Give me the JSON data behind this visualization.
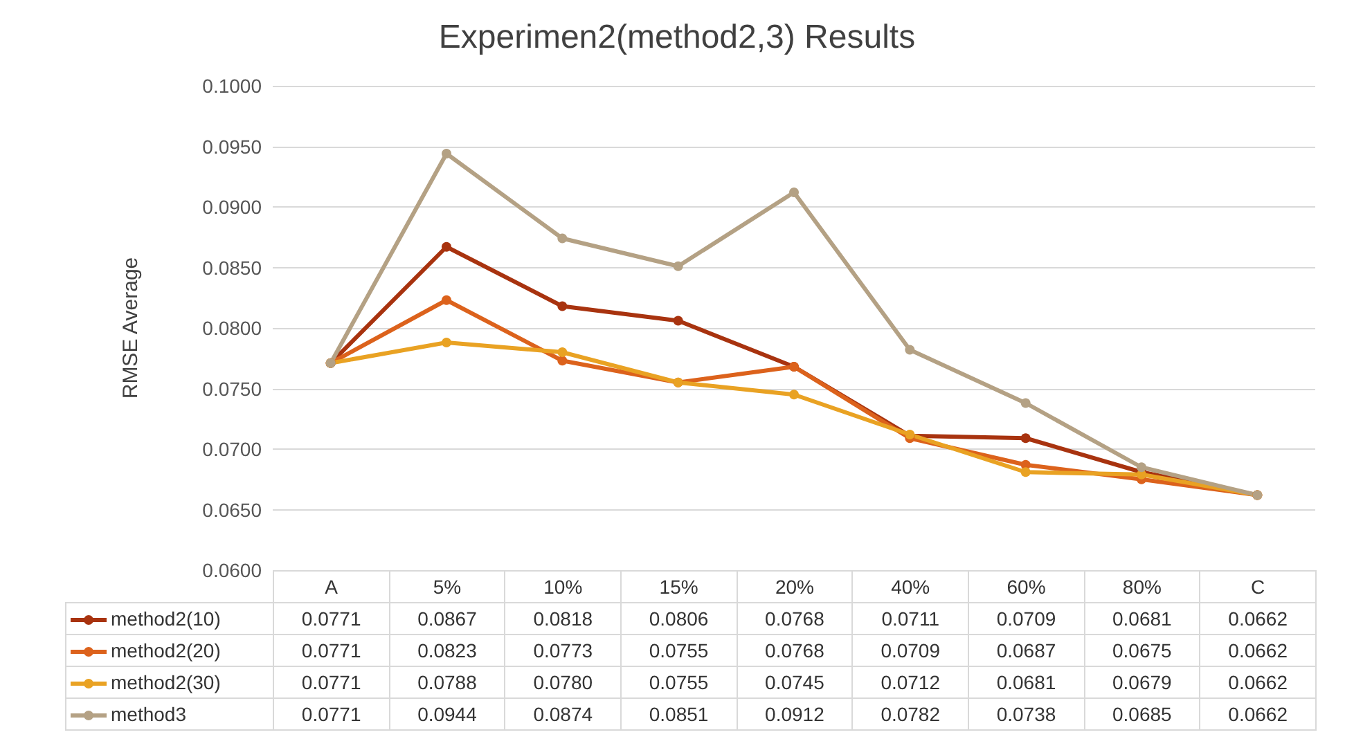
{
  "chart_data": {
    "type": "line",
    "title": "Experimen2(method2,3) Results",
    "ylabel": "RMSE Average",
    "categories": [
      "A",
      "5%",
      "10%",
      "15%",
      "20%",
      "40%",
      "60%",
      "80%",
      "C"
    ],
    "series": [
      {
        "name": "method2(10)",
        "color": "#a8330f",
        "values": [
          0.0771,
          0.0867,
          0.0818,
          0.0806,
          0.0768,
          0.0711,
          0.0709,
          0.0681,
          0.0662
        ],
        "value_labels": [
          "0.0771",
          "0.0867",
          "0.0818",
          "0.0806",
          "0.0768",
          "0.0711",
          "0.0709",
          "0.0681",
          "0.0662"
        ]
      },
      {
        "name": "method2(20)",
        "color": "#dc621c",
        "values": [
          0.0771,
          0.0823,
          0.0773,
          0.0755,
          0.0768,
          0.0709,
          0.0687,
          0.0675,
          0.0662
        ],
        "value_labels": [
          "0.0771",
          "0.0823",
          "0.0773",
          "0.0755",
          "0.0768",
          "0.0709",
          "0.0687",
          "0.0675",
          "0.0662"
        ]
      },
      {
        "name": "method2(30)",
        "color": "#e9a223",
        "values": [
          0.0771,
          0.0788,
          0.078,
          0.0755,
          0.0745,
          0.0712,
          0.0681,
          0.0679,
          0.0662
        ],
        "value_labels": [
          "0.0771",
          "0.0788",
          "0.0780",
          "0.0755",
          "0.0745",
          "0.0712",
          "0.0681",
          "0.0679",
          "0.0662"
        ]
      },
      {
        "name": "method3",
        "color": "#b4a184",
        "values": [
          0.0771,
          0.0944,
          0.0874,
          0.0851,
          0.0912,
          0.0782,
          0.0738,
          0.0685,
          0.0662
        ],
        "value_labels": [
          "0.0771",
          "0.0944",
          "0.0874",
          "0.0851",
          "0.0912",
          "0.0782",
          "0.0738",
          "0.0685",
          "0.0662"
        ]
      }
    ],
    "ylim": [
      0.06,
      0.1
    ],
    "yticks": [
      {
        "value": 0.06,
        "label": "0.0600"
      },
      {
        "value": 0.065,
        "label": "0.0650"
      },
      {
        "value": 0.07,
        "label": "0.0700"
      },
      {
        "value": 0.075,
        "label": "0.0750"
      },
      {
        "value": 0.08,
        "label": "0.0800"
      },
      {
        "value": 0.085,
        "label": "0.0850"
      },
      {
        "value": 0.09,
        "label": "0.0900"
      },
      {
        "value": 0.095,
        "label": "0.0950"
      },
      {
        "value": 0.1,
        "label": "0.1000"
      }
    ],
    "grid": "y",
    "legend": "bottom",
    "marker": "circle",
    "line_style": "solid"
  }
}
